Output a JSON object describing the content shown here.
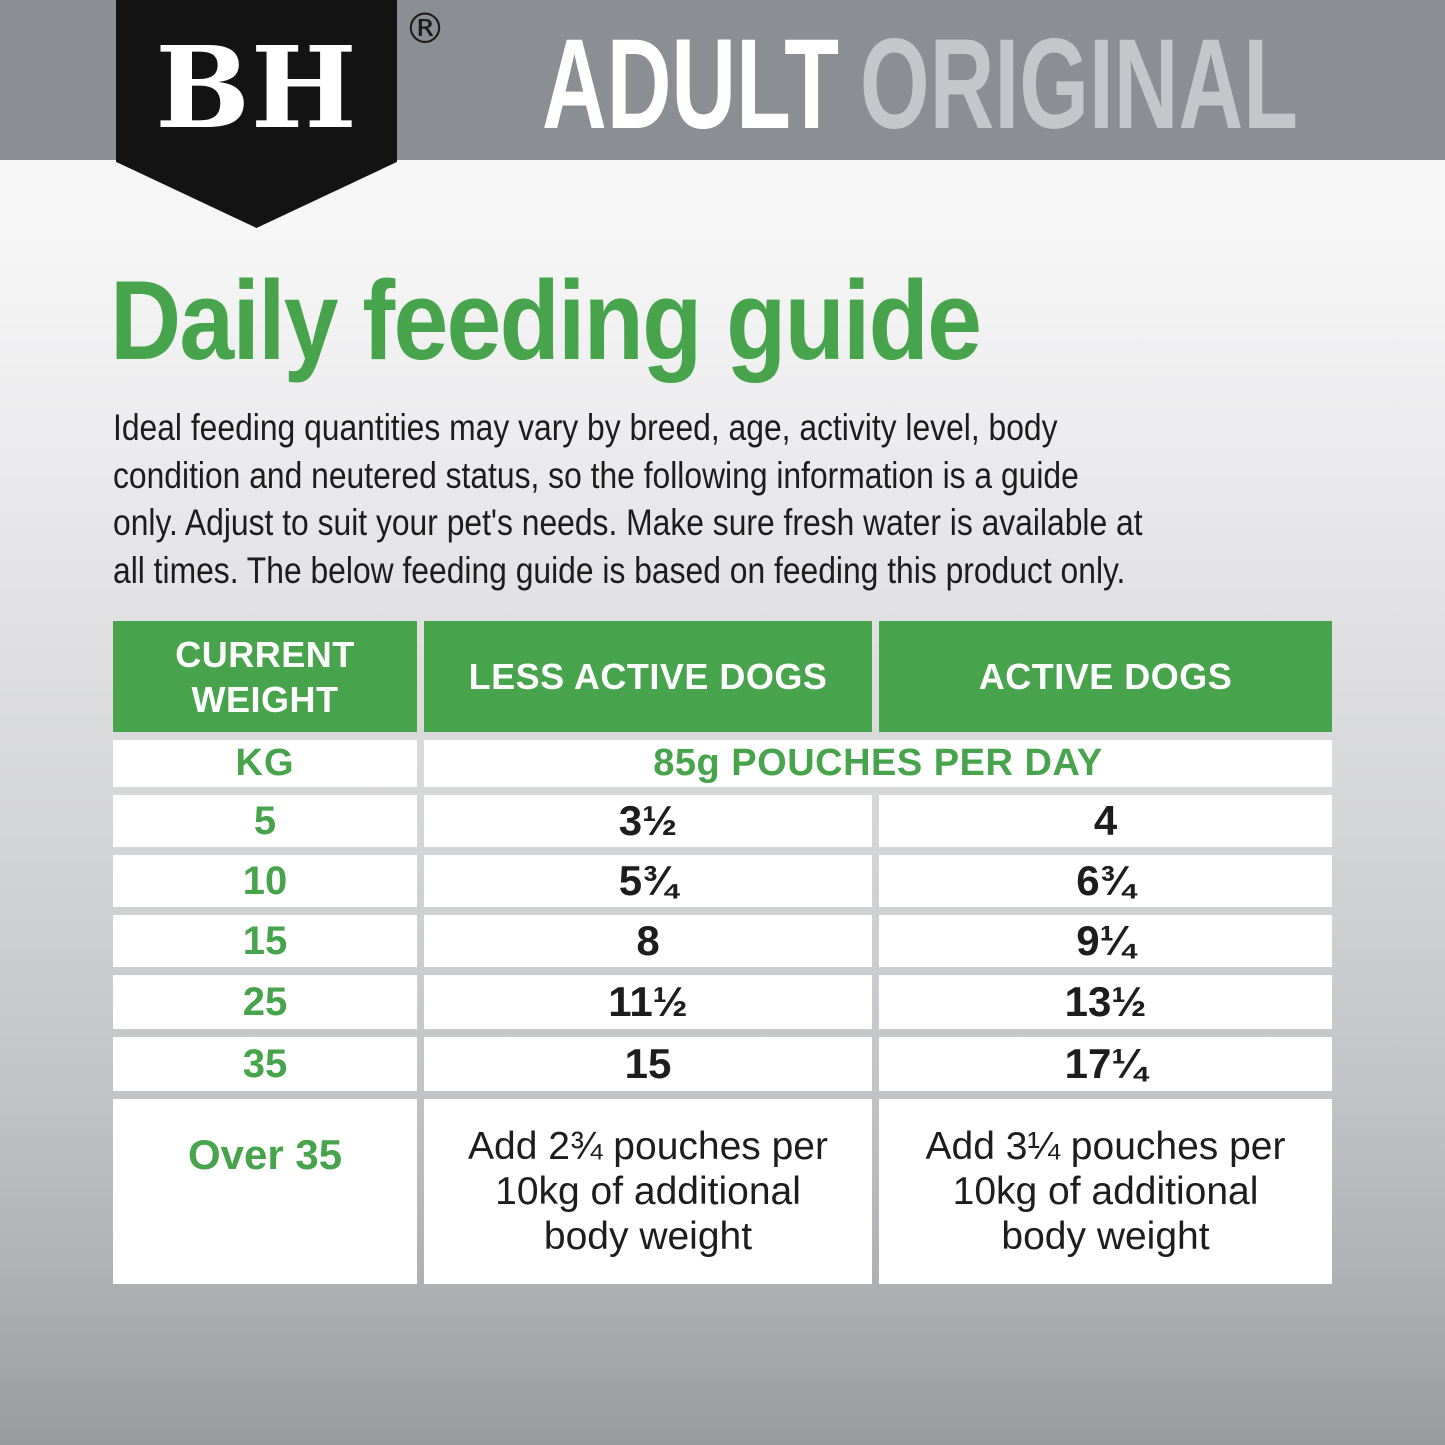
{
  "brand": {
    "logo_text": "BH",
    "registered_mark": "®"
  },
  "band": {
    "product_line": "ADULT",
    "variant": "ORIGINAL"
  },
  "page": {
    "title": "Daily feeding guide",
    "intro": "Ideal feeding quantities may vary by breed, age, activity level, body\ncondition and neutered status, so the following information is a guide\nonly. Adjust to suit your pet's needs. Make sure fresh water is available at\nall times. The below feeding guide is based on feeding this product only."
  },
  "colors": {
    "accent_green": "#47A44C",
    "band_gray": "#8B8E92",
    "banner_black": "#131313",
    "variant_text_gray": "#C5C6C9"
  },
  "table": {
    "headers": [
      "CURRENT WEIGHT",
      "LESS ACTIVE DOGS",
      "ACTIVE DOGS"
    ],
    "unit_row": {
      "weight_unit": "KG",
      "pouches_per_day": "85g POUCHES PER DAY"
    },
    "rows": [
      {
        "weight": "5",
        "less_active": "3½",
        "active": "4"
      },
      {
        "weight": "10",
        "less_active": "5¾",
        "active": "6¾"
      },
      {
        "weight": "15",
        "less_active": "8",
        "active": "9¼"
      },
      {
        "weight": "25",
        "less_active": "11½",
        "active": "13½"
      },
      {
        "weight": "35",
        "less_active": "15",
        "active": "17¼"
      },
      {
        "weight": "Over 35",
        "less_active": "Add 2¾ pouches per\n10kg of additional\nbody weight",
        "active": "Add 3¼ pouches per\n10kg of additional\nbody weight"
      }
    ]
  }
}
